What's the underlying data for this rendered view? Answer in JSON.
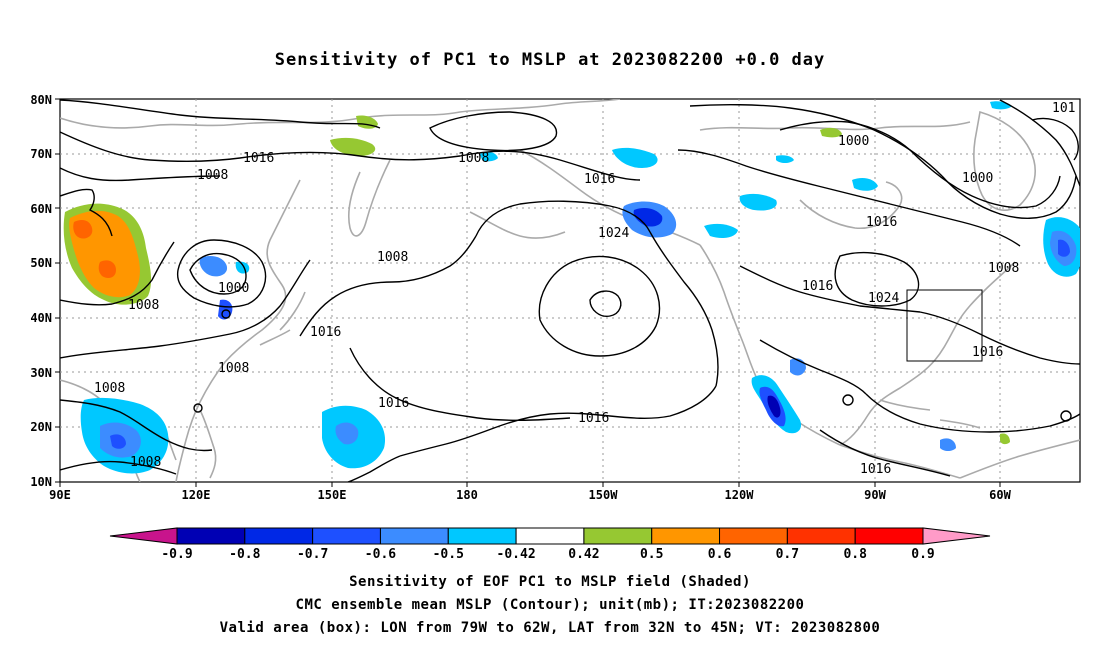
{
  "title": "Sensitivity of PC1 to MSLP at 2023082200 +0.0 day",
  "lat_labels": [
    "80N",
    "70N",
    "60N",
    "50N",
    "40N",
    "30N",
    "20N",
    "10N"
  ],
  "lon_labels": [
    "90E",
    "120E",
    "150E",
    "180",
    "150W",
    "120W",
    "90W",
    "60W"
  ],
  "isobar_labels": [
    "1016",
    "1008",
    "1008",
    "1008",
    "1016",
    "1024",
    "1016",
    "1000",
    "1000",
    "1016",
    "1008",
    "1016",
    "1024",
    "1016",
    "1000",
    "1008",
    "1008",
    "1016",
    "1016",
    "1008",
    "1008",
    "1016",
    "1008",
    "101"
  ],
  "colorbar": {
    "labels": [
      "-0.9",
      "-0.8",
      "-0.7",
      "-0.6",
      "-0.5",
      "-0.42",
      "0.42",
      "0.5",
      "0.6",
      "0.7",
      "0.8",
      "0.9"
    ],
    "colors": [
      "#c8148c",
      "#0000b4",
      "#0028e6",
      "#1e50ff",
      "#3c8cff",
      "#00c8ff",
      "#ffffff",
      "#96c832",
      "#ff9600",
      "#ff6400",
      "#ff3200",
      "#ff0000",
      "#ff9bc8"
    ]
  },
  "captions": [
    "Sensitivity of EOF PC1 to MSLP field (Shaded)",
    "CMC ensemble mean MSLP (Contour); unit(mb); IT:2023082200",
    "Valid area (box): LON from 79W to 62W, LAT from 32N to 45N; VT: 2023082800"
  ]
}
